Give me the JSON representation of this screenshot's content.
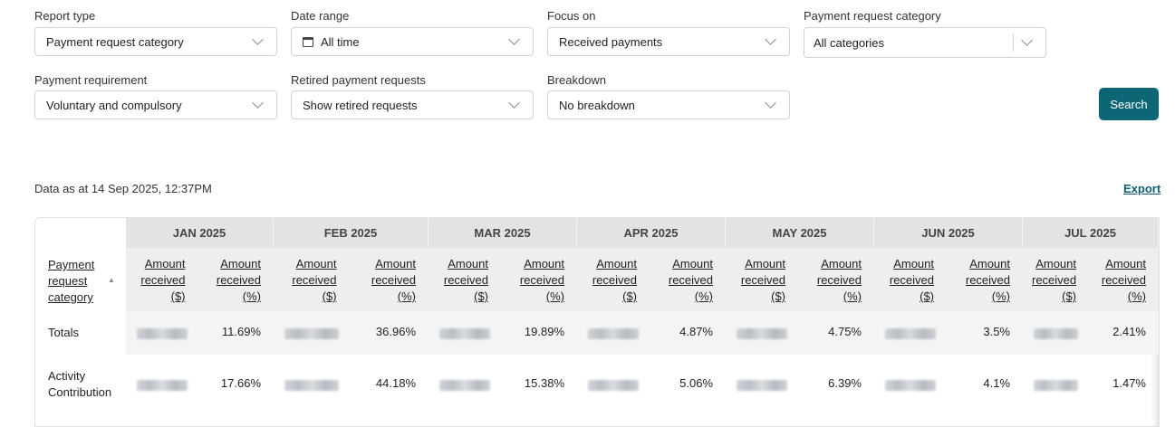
{
  "filters": {
    "report_type": {
      "label": "Report type",
      "value": "Payment request category"
    },
    "date_range": {
      "label": "Date range",
      "value": "All time"
    },
    "focus_on": {
      "label": "Focus on",
      "value": "Received payments"
    },
    "payment_request_category": {
      "label": "Payment request category",
      "value": "All categories"
    },
    "payment_requirement": {
      "label": "Payment requirement",
      "value": "Voluntary and compulsory"
    },
    "retired_payment_requests": {
      "label": "Retired payment requests",
      "value": "Show retired requests"
    },
    "breakdown": {
      "label": "Breakdown",
      "value": "No breakdown"
    }
  },
  "search_button": "Search",
  "data_as_at": "Data as at 14 Sep 2025, 12:37PM",
  "export_link": "Export",
  "table": {
    "first_column_header": "Payment request category",
    "months": [
      "JAN 2025",
      "FEB 2025",
      "MAR 2025",
      "APR 2025",
      "MAY 2025",
      "JUN 2025",
      "JUL 2025"
    ],
    "col_amount_dollar": "Amount received ($)",
    "col_amount_pct": "Amount received (%)",
    "rows": [
      {
        "label": "Totals",
        "pcts": [
          "11.69%",
          "36.96%",
          "19.89%",
          "4.87%",
          "4.75%",
          "3.5%",
          "2.41%"
        ]
      },
      {
        "label": "Activity Contribution",
        "pcts": [
          "17.66%",
          "44.18%",
          "15.38%",
          "5.06%",
          "6.39%",
          "4.1%",
          "1.47%"
        ]
      }
    ]
  }
}
